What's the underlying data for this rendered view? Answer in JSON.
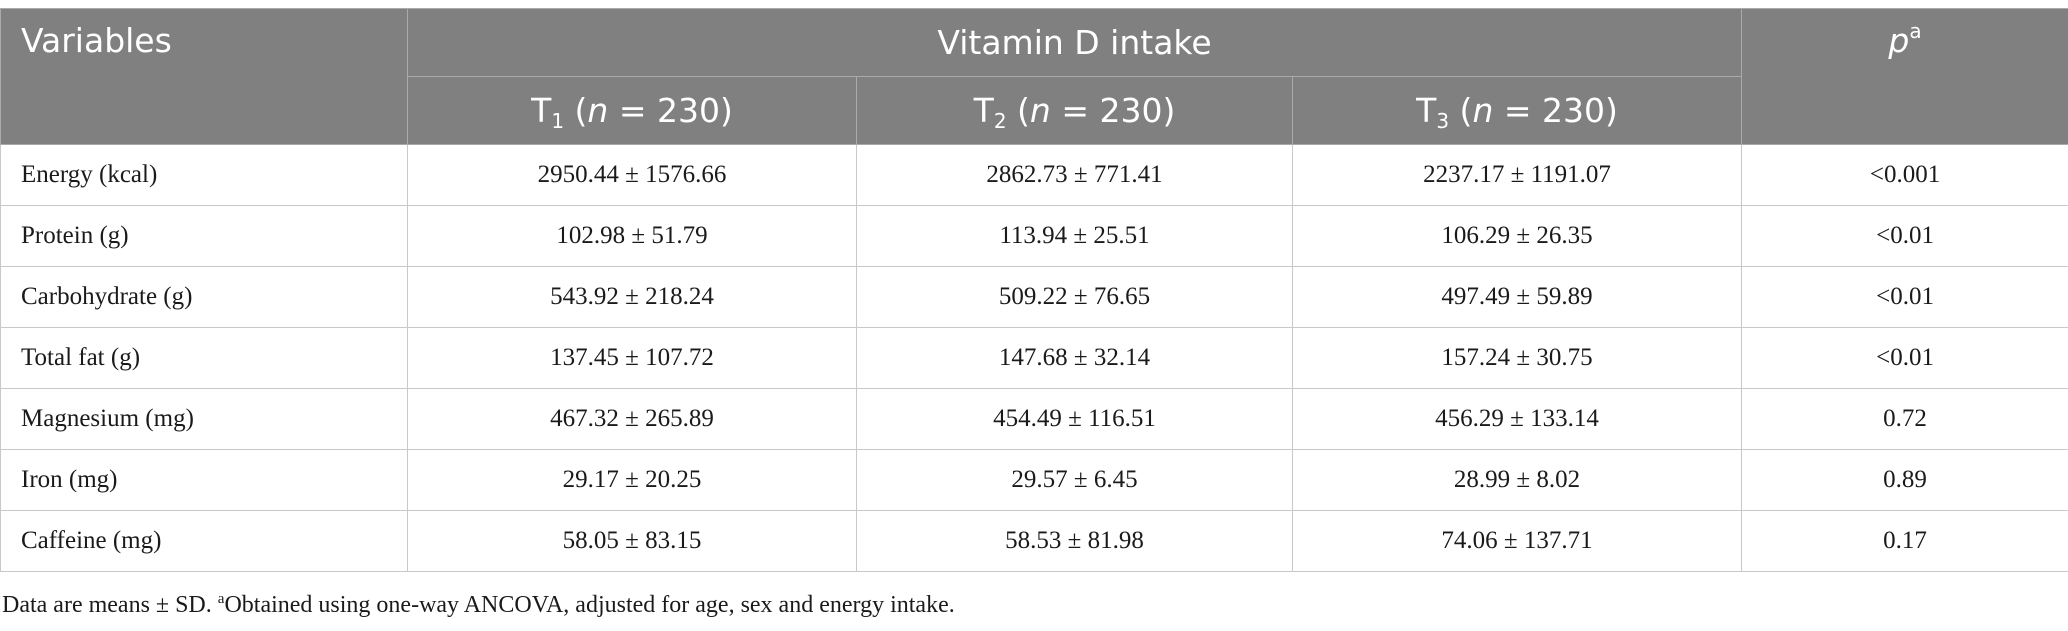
{
  "header": {
    "variables": "Variables",
    "group": "Vitamin D intake",
    "p_label": "p",
    "p_sup": "a",
    "groups": [
      {
        "prefix": "T",
        "sub": "1",
        "open": " (",
        "n_label": "n",
        "n_value": " = 230)"
      },
      {
        "prefix": "T",
        "sub": "2",
        "open": " (",
        "n_label": "n",
        "n_value": " = 230)"
      },
      {
        "prefix": "T",
        "sub": "3",
        "open": " (",
        "n_label": "n",
        "n_value": " = 230)"
      }
    ]
  },
  "rows": [
    {
      "variable": "Energy (kcal)",
      "t1": "2950.44 ± 1576.66",
      "t2": "2862.73 ± 771.41",
      "t3": "2237.17 ± 1191.07",
      "p": "<0.001"
    },
    {
      "variable": "Protein (g)",
      "t1": "102.98 ± 51.79",
      "t2": "113.94 ± 25.51",
      "t3": "106.29 ± 26.35",
      "p": "<0.01"
    },
    {
      "variable": "Carbohydrate (g)",
      "t1": "543.92 ± 218.24",
      "t2": "509.22 ± 76.65",
      "t3": "497.49 ± 59.89",
      "p": "<0.01"
    },
    {
      "variable": "Total fat (g)",
      "t1": "137.45 ± 107.72",
      "t2": "147.68 ± 32.14",
      "t3": "157.24 ± 30.75",
      "p": "<0.01"
    },
    {
      "variable": "Magnesium (mg)",
      "t1": "467.32 ± 265.89",
      "t2": "454.49 ± 116.51",
      "t3": "456.29 ± 133.14",
      "p": "0.72"
    },
    {
      "variable": "Iron (mg)",
      "t1": "29.17 ± 20.25",
      "t2": "29.57 ± 6.45",
      "t3": "28.99 ± 8.02",
      "p": "0.89"
    },
    {
      "variable": "Caffeine (mg)",
      "t1": "58.05 ± 83.15",
      "t2": "58.53 ± 81.98",
      "t3": "74.06 ± 137.71",
      "p": "0.17"
    }
  ],
  "footnote": {
    "lead": "Data are means ± SD. ",
    "sup": "a",
    "text": "Obtained using one-way ANCOVA, adjusted for age, sex and energy intake."
  },
  "colors": {
    "header_bg": "#7f807f",
    "header_text": "#ffffff",
    "grid": "#c8c8c8"
  }
}
